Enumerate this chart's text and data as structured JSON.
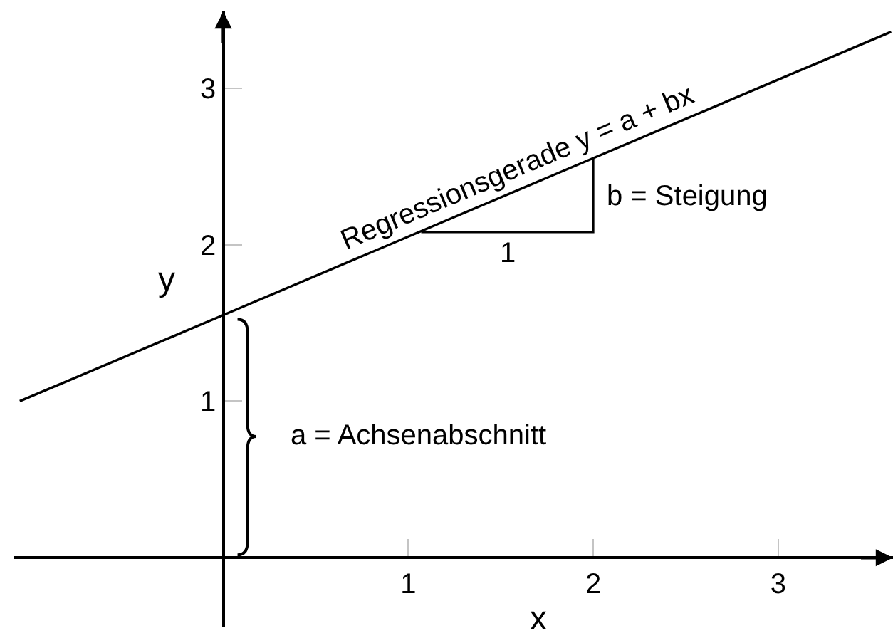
{
  "chart_data": {
    "type": "line",
    "xlabel": "x",
    "ylabel": "y",
    "series": [
      {
        "color": "#000000",
        "x": [
          -1.1,
          0,
          3.61
        ],
        "values": [
          1.0,
          1.55,
          3.36
        ]
      },
      {
        "color": "#000000",
        "x": [
          1.07,
          2,
          2
        ],
        "values": [
          2.08,
          2.08,
          2.55
        ]
      }
    ],
    "xlim": [
      -1.13,
      3.62
    ],
    "ylim": [
      -0.44,
      3.49
    ],
    "xticks": [
      1,
      2,
      3
    ],
    "yticks": [
      1,
      2,
      3
    ],
    "annotations": [
      {
        "text": "Regressionsgerade y = a + bx",
        "x": 1.63,
        "y": 2.37
      },
      {
        "text": "b = Steigung",
        "x": 2,
        "y": 2.31
      },
      {
        "text": "1",
        "x": 1.54,
        "y": 2.08
      },
      "a = Achsenabschnitt"
    ]
  }
}
